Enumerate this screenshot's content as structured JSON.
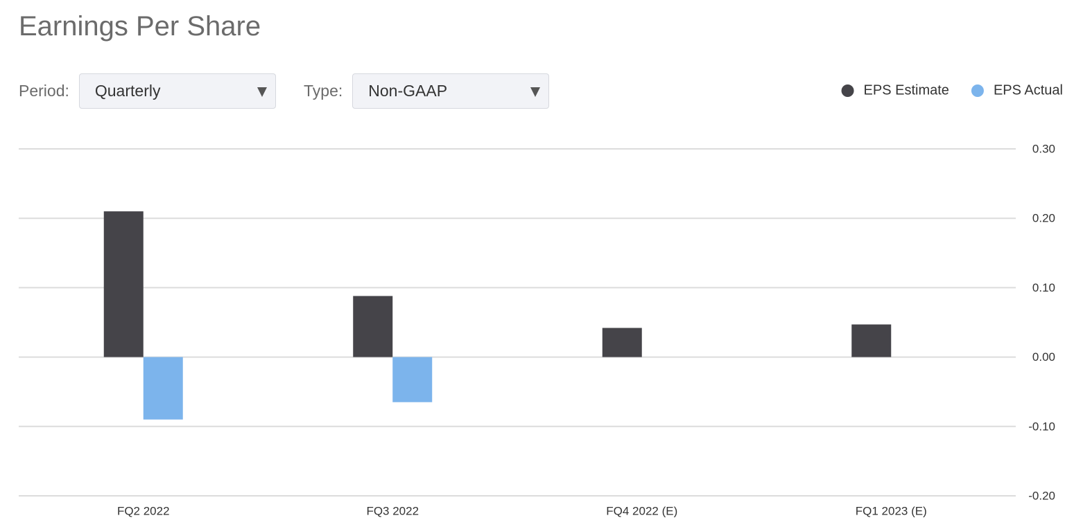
{
  "header": {
    "title": "Earnings Per Share"
  },
  "controls": [
    {
      "label": "Period:",
      "value": "Quarterly"
    },
    {
      "label": "Type:",
      "value": "Non-GAAP"
    }
  ],
  "chart_data": {
    "type": "bar",
    "categories": [
      "FQ2 2022",
      "FQ3 2022",
      "FQ4 2022 (E)",
      "FQ1 2023 (E)"
    ],
    "series": [
      {
        "name": "EPS Estimate",
        "color": "#454449",
        "values": [
          0.21,
          0.088,
          0.042,
          0.047
        ]
      },
      {
        "name": "EPS Actual",
        "color": "#7cb4ec",
        "values": [
          -0.09,
          -0.065,
          null,
          null
        ]
      }
    ],
    "ylim": [
      -0.2,
      0.3
    ],
    "yticks": [
      {
        "value": -0.2,
        "label": "-0.20"
      },
      {
        "value": -0.1,
        "label": "-0.10"
      },
      {
        "value": 0,
        "label": "0.00"
      },
      {
        "value": 0.1,
        "label": "0.10"
      },
      {
        "value": 0.2,
        "label": "0.20"
      },
      {
        "value": 0.3,
        "label": "0.30"
      }
    ],
    "grid": true,
    "legend": "top-right"
  }
}
